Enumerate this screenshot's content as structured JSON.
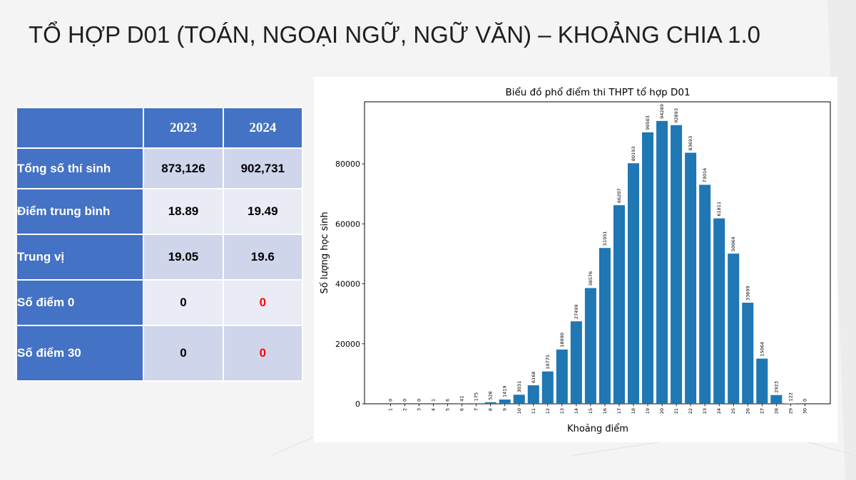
{
  "slide": {
    "title": "TỔ HỢP D01 (TOÁN, NGOẠI NGỮ, NGỮ VĂN) – KHOẢNG CHIA 1.0"
  },
  "table": {
    "years": [
      "2023",
      "2024"
    ],
    "rows": [
      {
        "label": "Tổng số thí sinh",
        "v2023": "873,126",
        "v2024": "902,731"
      },
      {
        "label": "Điểm trung bình",
        "v2023": "18.89",
        "v2024": "19.49"
      },
      {
        "label": "Trung vị",
        "v2023": "19.05",
        "v2024": "19.6"
      },
      {
        "label": "Số điểm 0",
        "v2023": "0",
        "v2024": "0"
      },
      {
        "label": "Số điểm 30",
        "v2023": "0",
        "v2024": "0"
      }
    ],
    "colors": {
      "header": "#4472c4",
      "highlight_text": "#ff0000"
    }
  },
  "chart_data": {
    "type": "bar",
    "title": "Biểu đồ phổ điểm thi THPT tổ hợp D01",
    "xlabel": "Khoảng điểm",
    "ylabel": "Số lượng học sinh",
    "categories": [
      "1",
      "2",
      "3",
      "4",
      "5",
      "6",
      "7",
      "8",
      "9",
      "10",
      "11",
      "12",
      "13",
      "14",
      "15",
      "16",
      "17",
      "18",
      "19",
      "20",
      "21",
      "22",
      "23",
      "24",
      "25",
      "26",
      "27",
      "28",
      "29",
      "30"
    ],
    "values": [
      0,
      0,
      0,
      1,
      6,
      41,
      175,
      528,
      1419,
      3031,
      6168,
      10775,
      18090,
      27499,
      38576,
      51951,
      66207,
      80193,
      90503,
      94289,
      92893,
      83693,
      73016,
      61811,
      50064,
      33699,
      15064,
      2923,
      122,
      0
    ],
    "yticks": [
      0,
      20000,
      40000,
      60000,
      80000
    ],
    "ylim": [
      0,
      99000
    ],
    "bar_color": "#1f77b4",
    "grid": false,
    "legend": "none"
  }
}
